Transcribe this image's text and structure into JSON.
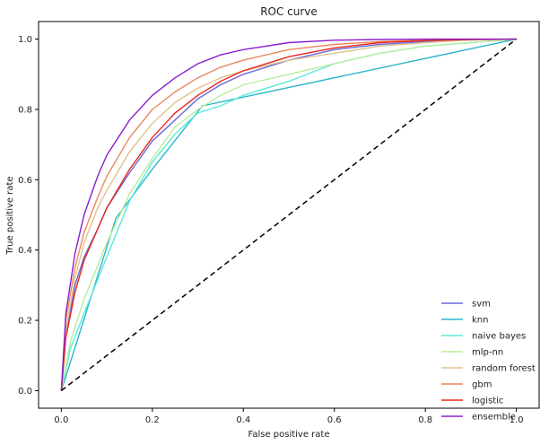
{
  "chart_data": {
    "type": "line",
    "title": "ROC curve",
    "xlabel": "False positive rate",
    "ylabel": "True positive rate",
    "xlim": [
      -0.05,
      1.05
    ],
    "ylim": [
      -0.05,
      1.05
    ],
    "xticks": [
      "0.0",
      "0.2",
      "0.4",
      "0.6",
      "0.8",
      "1.0"
    ],
    "yticks": [
      "0.0",
      "0.2",
      "0.4",
      "0.6",
      "0.8",
      "1.0"
    ],
    "xtick_values": [
      0,
      0.2,
      0.4,
      0.6,
      0.8,
      1.0
    ],
    "ytick_values": [
      0,
      0.2,
      0.4,
      0.6,
      0.8,
      1.0
    ],
    "grid": false,
    "legend_position": "bottom-right",
    "diagonal": {
      "x": [
        0,
        1
      ],
      "y": [
        0,
        1
      ],
      "style": "dashed",
      "color": "#000000"
    },
    "series": [
      {
        "name": "svm",
        "color": "#6a6ad8",
        "x": [
          0,
          0.01,
          0.03,
          0.05,
          0.08,
          0.1,
          0.15,
          0.2,
          0.25,
          0.3,
          0.35,
          0.4,
          0.5,
          0.6,
          0.7,
          0.8,
          0.9,
          1.0
        ],
        "y": [
          0,
          0.16,
          0.3,
          0.38,
          0.46,
          0.52,
          0.62,
          0.71,
          0.77,
          0.83,
          0.87,
          0.9,
          0.94,
          0.97,
          0.985,
          0.993,
          0.998,
          1.0
        ]
      },
      {
        "name": "knn",
        "color": "#2cb5c9",
        "x": [
          0,
          0.12,
          0.2,
          0.31,
          1.0
        ],
        "y": [
          0,
          0.49,
          0.63,
          0.81,
          1.0
        ]
      },
      {
        "name": "naive bayes",
        "color": "#5be8dc",
        "x": [
          0,
          0.02,
          0.05,
          0.1,
          0.15,
          0.2,
          0.25,
          0.3,
          0.35,
          0.4,
          0.45,
          0.5,
          0.6,
          0.7,
          0.8,
          0.9,
          1.0
        ],
        "y": [
          0,
          0.12,
          0.22,
          0.38,
          0.54,
          0.65,
          0.73,
          0.79,
          0.81,
          0.84,
          0.86,
          0.88,
          0.93,
          0.96,
          0.98,
          0.99,
          1.0
        ]
      },
      {
        "name": "mlp-nn",
        "color": "#b6ee9a",
        "x": [
          0,
          0.02,
          0.05,
          0.1,
          0.15,
          0.2,
          0.25,
          0.3,
          0.35,
          0.4,
          0.5,
          0.6,
          0.7,
          0.8,
          0.9,
          1.0
        ],
        "y": [
          0,
          0.14,
          0.26,
          0.42,
          0.56,
          0.66,
          0.75,
          0.8,
          0.84,
          0.87,
          0.9,
          0.93,
          0.96,
          0.98,
          0.99,
          1.0
        ]
      },
      {
        "name": "random forest",
        "color": "#e0c28e",
        "x": [
          0,
          0.01,
          0.03,
          0.05,
          0.08,
          0.1,
          0.15,
          0.2,
          0.25,
          0.3,
          0.35,
          0.4,
          0.5,
          0.6,
          0.7,
          0.8,
          0.9,
          1.0
        ],
        "y": [
          0,
          0.17,
          0.32,
          0.42,
          0.52,
          0.57,
          0.68,
          0.76,
          0.82,
          0.86,
          0.89,
          0.91,
          0.94,
          0.96,
          0.98,
          0.99,
          0.998,
          1.0
        ]
      },
      {
        "name": "gbm",
        "color": "#e8895e",
        "x": [
          0,
          0.01,
          0.03,
          0.05,
          0.08,
          0.1,
          0.15,
          0.2,
          0.25,
          0.3,
          0.35,
          0.4,
          0.5,
          0.6,
          0.7,
          0.8,
          0.9,
          1.0
        ],
        "y": [
          0,
          0.2,
          0.35,
          0.45,
          0.55,
          0.61,
          0.72,
          0.8,
          0.85,
          0.89,
          0.92,
          0.94,
          0.97,
          0.985,
          0.993,
          0.997,
          0.999,
          1.0
        ]
      },
      {
        "name": "logistic",
        "color": "#e8281e",
        "x": [
          0,
          0.01,
          0.03,
          0.05,
          0.08,
          0.1,
          0.15,
          0.2,
          0.25,
          0.3,
          0.35,
          0.4,
          0.5,
          0.6,
          0.7,
          0.8,
          0.9,
          1.0
        ],
        "y": [
          0,
          0.15,
          0.28,
          0.37,
          0.46,
          0.52,
          0.63,
          0.72,
          0.79,
          0.84,
          0.88,
          0.91,
          0.95,
          0.975,
          0.99,
          0.996,
          0.999,
          1.0
        ]
      },
      {
        "name": "ensemble",
        "color": "#8a1ed0",
        "x": [
          0,
          0.01,
          0.03,
          0.05,
          0.08,
          0.1,
          0.15,
          0.2,
          0.25,
          0.3,
          0.35,
          0.4,
          0.5,
          0.6,
          0.7,
          0.8,
          0.9,
          1.0
        ],
        "y": [
          0,
          0.22,
          0.39,
          0.5,
          0.61,
          0.67,
          0.77,
          0.84,
          0.89,
          0.93,
          0.955,
          0.97,
          0.99,
          0.997,
          0.999,
          1.0,
          1.0,
          1.0
        ]
      }
    ]
  }
}
